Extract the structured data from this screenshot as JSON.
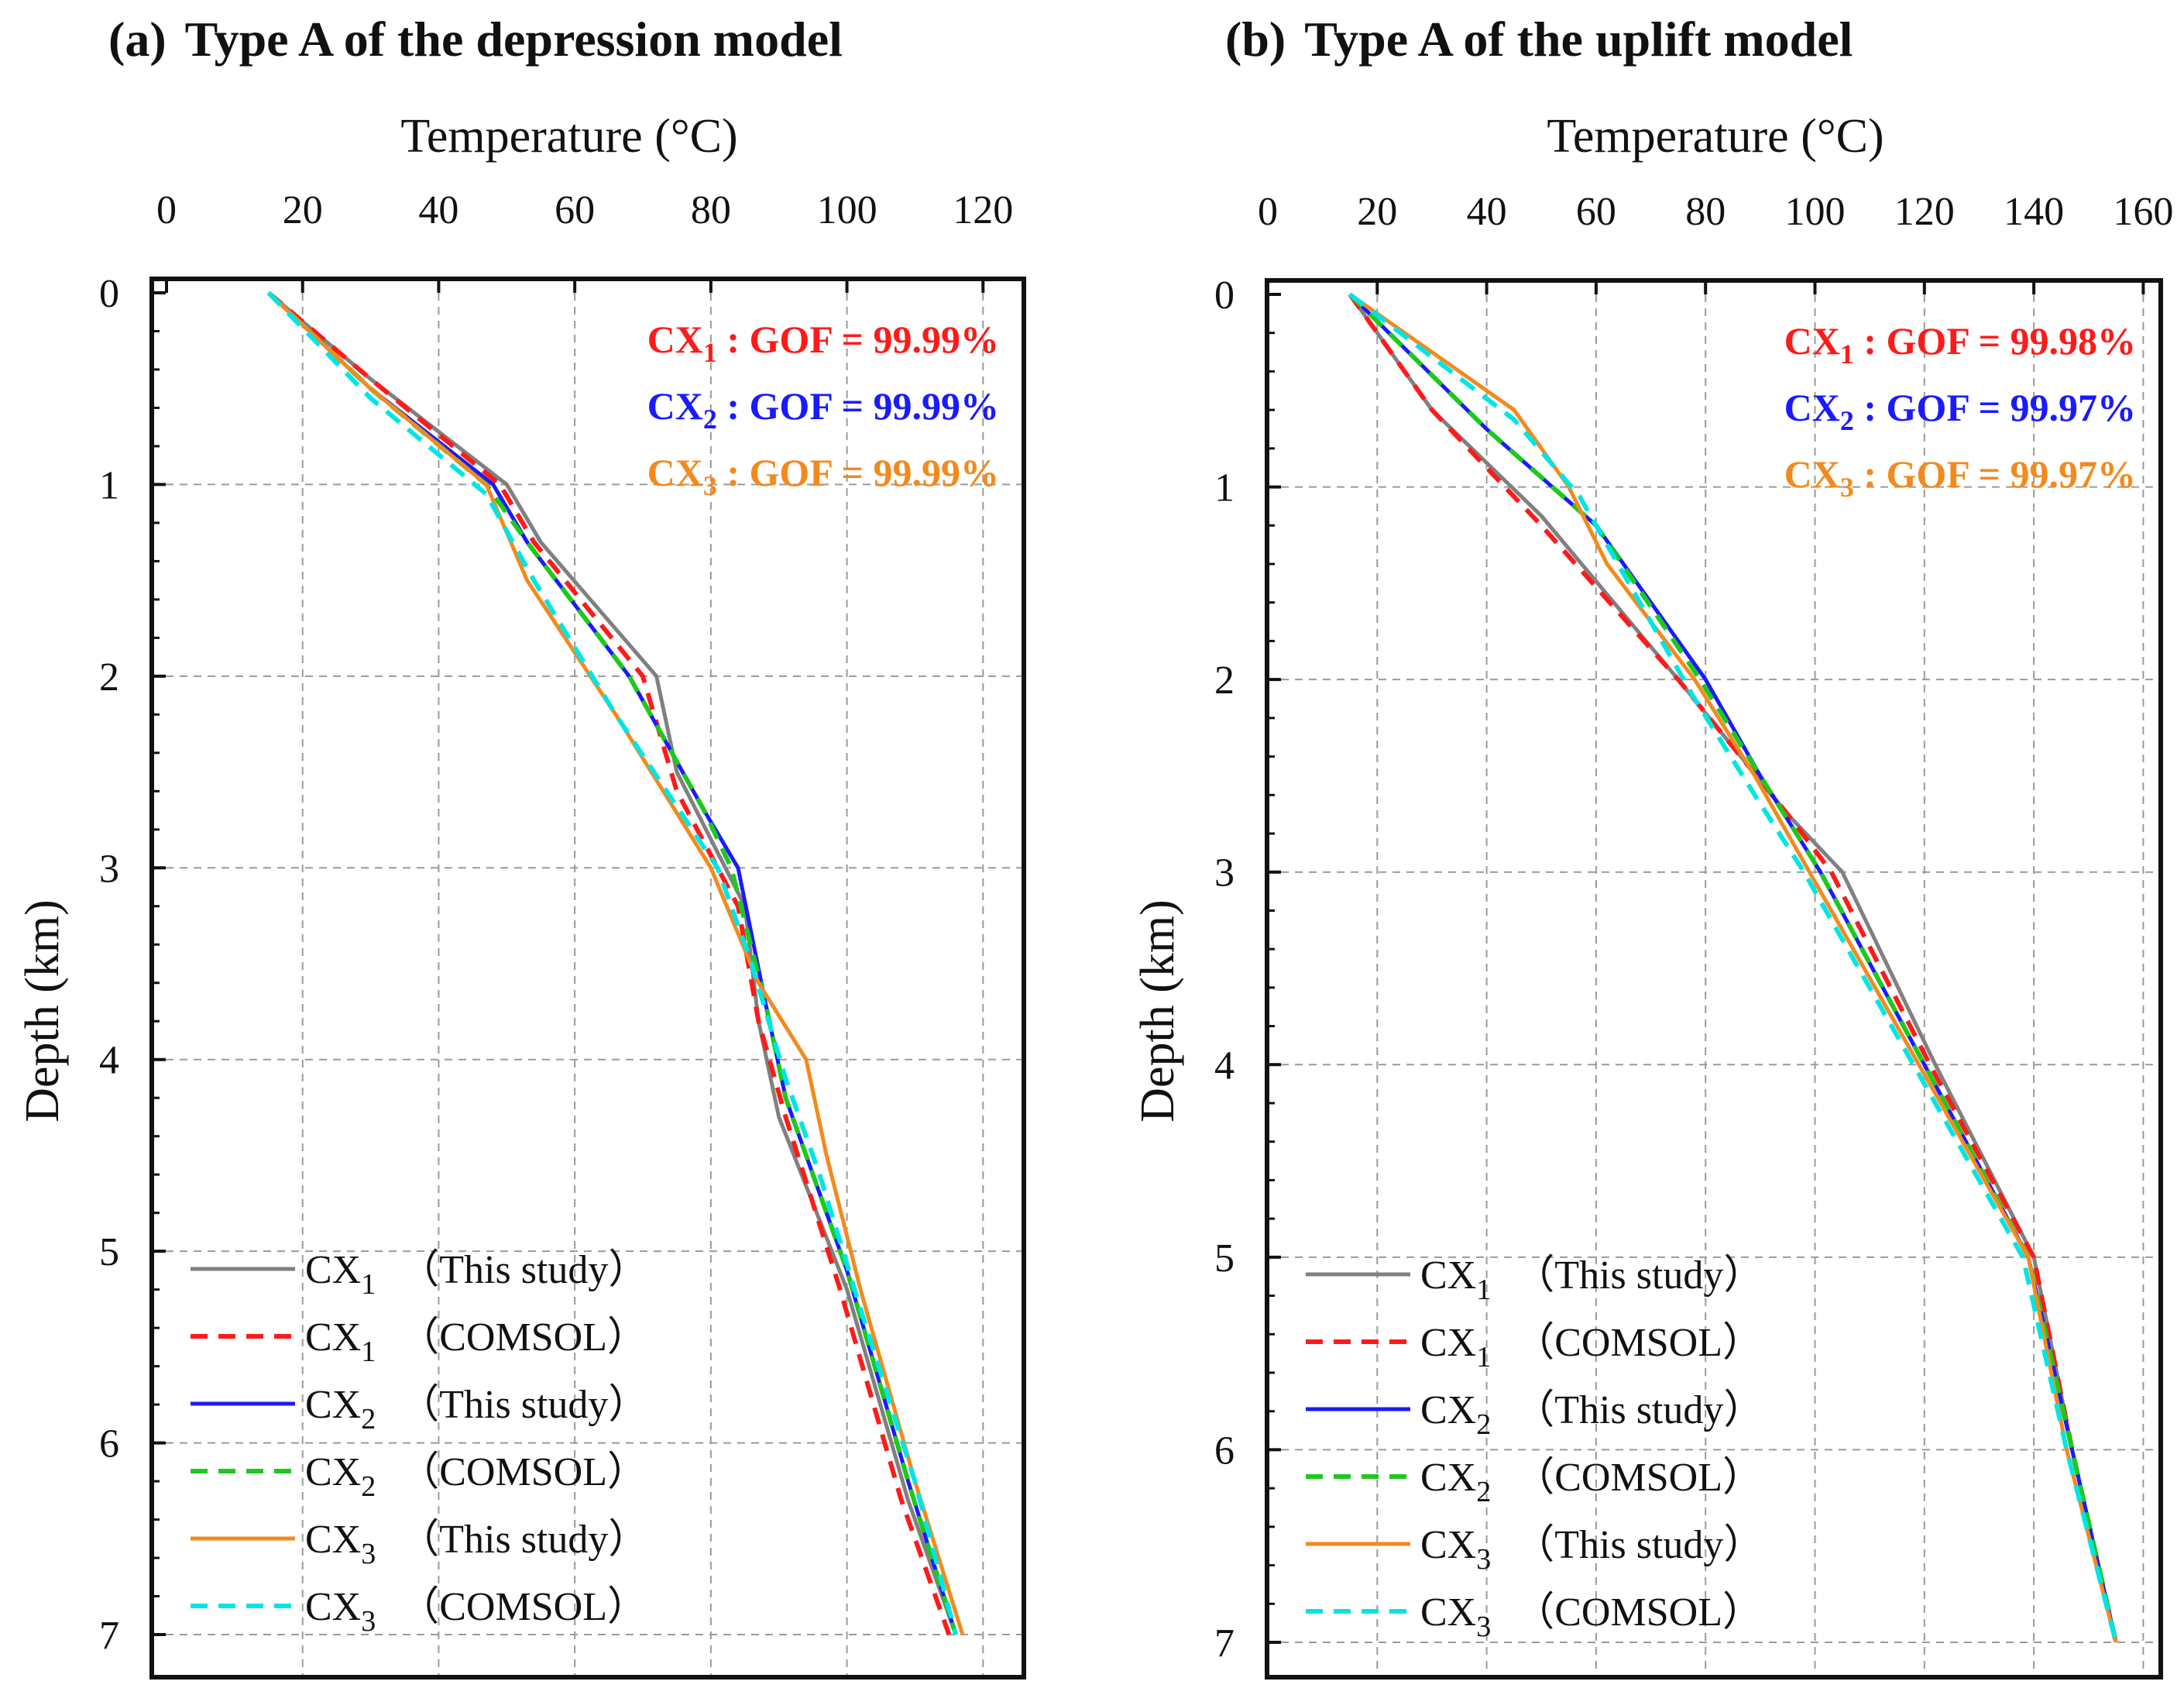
{
  "chart_data": [
    {
      "type": "line",
      "panel": "(a)",
      "title": "Type A of the depression model",
      "xlabel": "Temperature (°C)",
      "ylabel": "Depth (km)",
      "xlim": [
        0,
        120
      ],
      "ylim": [
        0,
        7
      ],
      "xticks": [
        "0",
        "20",
        "40",
        "60",
        "80",
        "100",
        "120"
      ],
      "yticks": [
        "0",
        "1",
        "2",
        "3",
        "4",
        "5",
        "6",
        "7"
      ],
      "grid": true,
      "legend_position": "bottom-left",
      "gof": [
        {
          "well": "CX",
          "sub": "1",
          "text": "GOF = 99.99%",
          "color": "#ff1a1a"
        },
        {
          "well": "CX",
          "sub": "2",
          "text": "GOF = 99.99%",
          "color": "#1a1aff"
        },
        {
          "well": "CX",
          "sub": "3",
          "text": "GOF = 99.99%",
          "color": "#f28a1e"
        }
      ],
      "series": [
        {
          "name": "CX1 (This study)",
          "well": "CX",
          "sub": "1",
          "source": "（This study）",
          "color": "#808080",
          "dash": false,
          "points": [
            [
              15,
              0
            ],
            [
              30,
              0.45
            ],
            [
              50,
              1.0
            ],
            [
              55,
              1.3
            ],
            [
              72,
              2.0
            ],
            [
              75,
              2.5
            ],
            [
              85,
              3.2
            ],
            [
              87,
              3.8
            ],
            [
              90,
              4.3
            ],
            [
              100,
              5.2
            ],
            [
              109,
              6.3
            ],
            [
              116,
              7.0
            ]
          ]
        },
        {
          "name": "CX1 (COMSOL)",
          "well": "CX",
          "sub": "1",
          "source": "（COMSOL）",
          "color": "#ff1a1a",
          "dash": true,
          "points": [
            [
              15,
              0
            ],
            [
              30,
              0.45
            ],
            [
              49,
              1.0
            ],
            [
              54,
              1.3
            ],
            [
              70,
              2.0
            ],
            [
              75,
              2.6
            ],
            [
              84,
              3.2
            ],
            [
              87,
              3.8
            ],
            [
              91,
              4.3
            ],
            [
              99,
              5.2
            ],
            [
              108,
              6.3
            ],
            [
              115,
              7.0
            ]
          ]
        },
        {
          "name": "CX2 (This study)",
          "well": "CX",
          "sub": "2",
          "source": "（This study）",
          "color": "#1a1aff",
          "dash": false,
          "points": [
            [
              15,
              0
            ],
            [
              30,
              0.5
            ],
            [
              48,
              1.0
            ],
            [
              53,
              1.3
            ],
            [
              68,
              2.0
            ],
            [
              79,
              2.7
            ],
            [
              84,
              3.0
            ],
            [
              88,
              3.7
            ],
            [
              91,
              4.2
            ],
            [
              100,
              5.1
            ],
            [
              109,
              6.2
            ],
            [
              116,
              7.0
            ]
          ]
        },
        {
          "name": "CX2 (COMSOL)",
          "well": "CX",
          "sub": "2",
          "source": "（COMSOL）",
          "color": "#1ec81e",
          "dash": true,
          "points": [
            [
              15,
              0
            ],
            [
              30,
              0.5
            ],
            [
              47,
              1.0
            ],
            [
              53,
              1.3
            ],
            [
              68,
              2.0
            ],
            [
              79,
              2.7
            ],
            [
              83,
              3.0
            ],
            [
              88,
              3.7
            ],
            [
              91,
              4.2
            ],
            [
              100,
              5.1
            ],
            [
              109,
              6.2
            ],
            [
              116,
              7.0
            ]
          ]
        },
        {
          "name": "CX3 (This study)",
          "well": "CX",
          "sub": "3",
          "source": "（This study）",
          "color": "#f28a1e",
          "dash": false,
          "points": [
            [
              15,
              0
            ],
            [
              30,
              0.5
            ],
            [
              47,
              1.0
            ],
            [
              53,
              1.5
            ],
            [
              66,
              2.2
            ],
            [
              80,
              3.0
            ],
            [
              87,
              3.6
            ],
            [
              94,
              4.0
            ],
            [
              97,
              4.5
            ],
            [
              102,
              5.2
            ],
            [
              110,
              6.2
            ],
            [
              117,
              7.0
            ]
          ]
        },
        {
          "name": "CX3 (COMSOL)",
          "well": "CX",
          "sub": "3",
          "source": "（COMSOL）",
          "color": "#00e5e5",
          "dash": true,
          "points": [
            [
              15,
              0
            ],
            [
              30,
              0.55
            ],
            [
              47,
              1.05
            ],
            [
              54,
              1.5
            ],
            [
              66,
              2.2
            ],
            [
              81,
              3.0
            ],
            [
              86,
              3.5
            ],
            [
              91,
              4.1
            ],
            [
              96,
              4.6
            ],
            [
              102,
              5.3
            ],
            [
              110,
              6.2
            ],
            [
              116,
              7.0
            ]
          ]
        }
      ]
    },
    {
      "type": "line",
      "panel": "(b)",
      "title": "Type A of the uplift model",
      "xlabel": "Temperature (°C)",
      "ylabel": "Depth (km)",
      "xlim": [
        0,
        160
      ],
      "ylim": [
        0,
        7
      ],
      "xticks": [
        "0",
        "20",
        "40",
        "60",
        "80",
        "100",
        "120",
        "140",
        "160"
      ],
      "yticks": [
        "0",
        "1",
        "2",
        "3",
        "4",
        "5",
        "6",
        "7"
      ],
      "grid": true,
      "legend_position": "bottom-left",
      "gof": [
        {
          "well": "CX",
          "sub": "1",
          "text": "GOF = 99.98%",
          "color": "#ff1a1a"
        },
        {
          "well": "CX",
          "sub": "2",
          "text": "GOF = 99.97%",
          "color": "#1a1aff"
        },
        {
          "well": "CX",
          "sub": "3",
          "text": "GOF = 99.97%",
          "color": "#f28a1e"
        }
      ],
      "series": [
        {
          "name": "CX1 (This study)",
          "well": "CX",
          "sub": "1",
          "source": "（This study）",
          "color": "#808080",
          "dash": false,
          "points": [
            [
              15,
              0
            ],
            [
              30,
              0.6
            ],
            [
              50,
              1.15
            ],
            [
              75,
              2.0
            ],
            [
              95,
              2.7
            ],
            [
              105,
              3.0
            ],
            [
              122,
              4.0
            ],
            [
              140,
              5.0
            ],
            [
              147,
              6.0
            ],
            [
              155,
              7.0
            ]
          ]
        },
        {
          "name": "CX1 (COMSOL)",
          "well": "CX",
          "sub": "1",
          "source": "（COMSOL）",
          "color": "#ff1a1a",
          "dash": true,
          "points": [
            [
              15,
              0
            ],
            [
              30,
              0.6
            ],
            [
              50,
              1.2
            ],
            [
              75,
              2.0
            ],
            [
              95,
              2.7
            ],
            [
              103,
              3.0
            ],
            [
              121,
              4.0
            ],
            [
              140,
              5.0
            ],
            [
              147,
              6.0
            ],
            [
              155,
              7.0
            ]
          ]
        },
        {
          "name": "CX2 (This study)",
          "well": "CX",
          "sub": "2",
          "source": "（This study）",
          "color": "#1a1aff",
          "dash": false,
          "points": [
            [
              15,
              0
            ],
            [
              40,
              0.7
            ],
            [
              60,
              1.2
            ],
            [
              80,
              2.0
            ],
            [
              90,
              2.5
            ],
            [
              101,
              3.0
            ],
            [
              120,
              4.0
            ],
            [
              139,
              5.0
            ],
            [
              147,
              6.0
            ],
            [
              155,
              7.0
            ]
          ]
        },
        {
          "name": "CX2 (COMSOL)",
          "well": "CX",
          "sub": "2",
          "source": "（COMSOL）",
          "color": "#1ec81e",
          "dash": true,
          "points": [
            [
              15,
              0
            ],
            [
              40,
              0.7
            ],
            [
              60,
              1.2
            ],
            [
              79,
              2.0
            ],
            [
              90,
              2.5
            ],
            [
              101,
              3.0
            ],
            [
              120,
              4.0
            ],
            [
              139,
              5.0
            ],
            [
              147,
              6.0
            ],
            [
              155,
              7.0
            ]
          ]
        },
        {
          "name": "CX3 (This study)",
          "well": "CX",
          "sub": "3",
          "source": "（This study）",
          "color": "#f28a1e",
          "dash": false,
          "points": [
            [
              15,
              0
            ],
            [
              45,
              0.6
            ],
            [
              55,
              1.0
            ],
            [
              62,
              1.4
            ],
            [
              78,
              2.0
            ],
            [
              89,
              2.5
            ],
            [
              99,
              3.0
            ],
            [
              119,
              4.0
            ],
            [
              139,
              5.0
            ],
            [
              146,
              6.0
            ],
            [
              155,
              7.0
            ]
          ]
        },
        {
          "name": "CX3 (COMSOL)",
          "well": "CX",
          "sub": "3",
          "source": "（COMSOL）",
          "color": "#00e5e5",
          "dash": true,
          "points": [
            [
              15,
              0
            ],
            [
              45,
              0.65
            ],
            [
              57,
              1.05
            ],
            [
              66,
              1.5
            ],
            [
              78,
              2.1
            ],
            [
              89,
              2.6
            ],
            [
              98,
              3.0
            ],
            [
              118,
              4.0
            ],
            [
              138,
              5.0
            ],
            [
              146,
              6.0
            ],
            [
              155,
              7.0
            ]
          ]
        }
      ]
    }
  ]
}
